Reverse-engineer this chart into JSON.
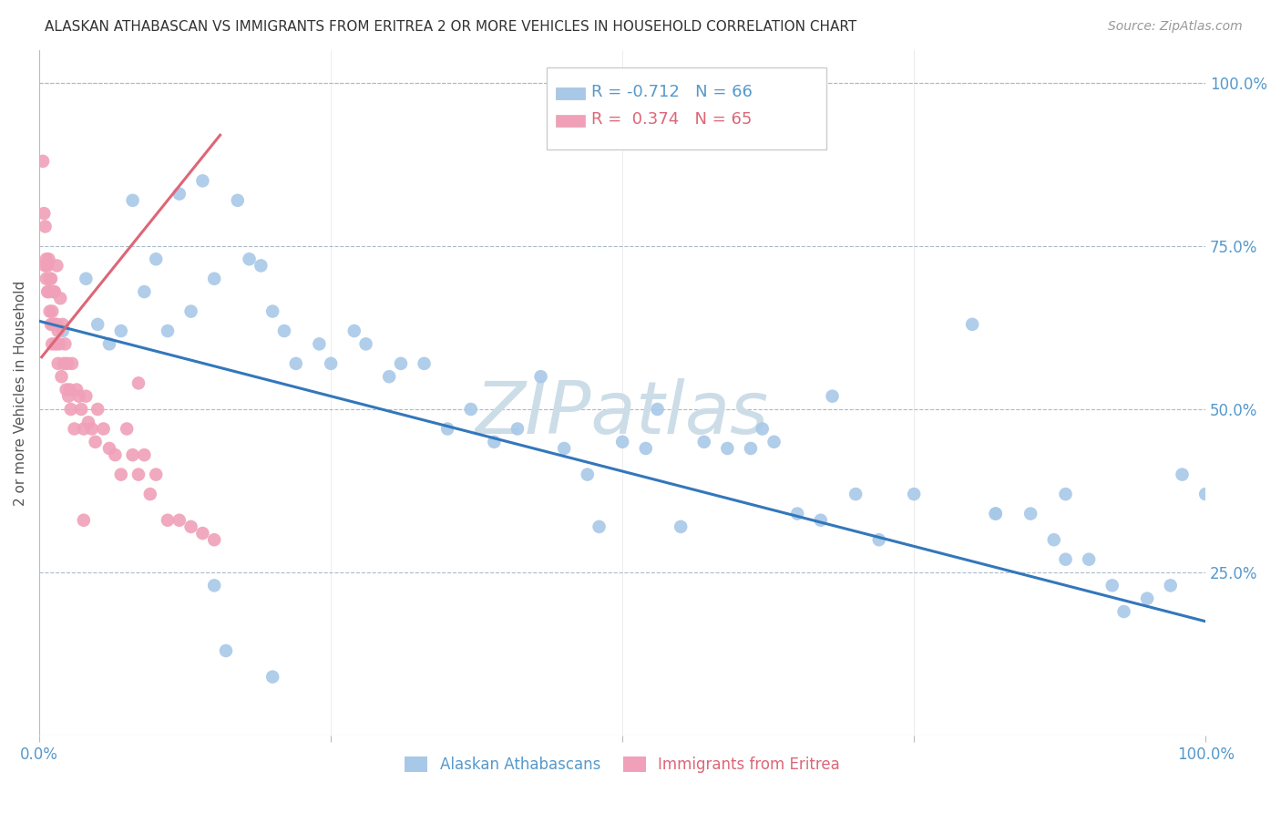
{
  "title": "ALASKAN ATHABASCAN VS IMMIGRANTS FROM ERITREA 2 OR MORE VEHICLES IN HOUSEHOLD CORRELATION CHART",
  "source": "Source: ZipAtlas.com",
  "ylabel": "2 or more Vehicles in Household",
  "ytick_labels": [
    "100.0%",
    "75.0%",
    "50.0%",
    "25.0%"
  ],
  "ytick_values": [
    1.0,
    0.75,
    0.5,
    0.25
  ],
  "legend_blue_r": "-0.712",
  "legend_blue_n": "66",
  "legend_pink_r": "0.374",
  "legend_pink_n": "65",
  "blue_color": "#a8c8e8",
  "pink_color": "#f0a0b8",
  "blue_line_color": "#3377bb",
  "pink_line_color": "#dd6677",
  "watermark": "ZIPatlas",
  "watermark_color": "#ccdde8",
  "blue_scatter_x": [
    0.02,
    0.04,
    0.05,
    0.06,
    0.07,
    0.08,
    0.09,
    0.1,
    0.11,
    0.12,
    0.13,
    0.14,
    0.15,
    0.17,
    0.18,
    0.19,
    0.2,
    0.21,
    0.22,
    0.24,
    0.25,
    0.27,
    0.28,
    0.3,
    0.31,
    0.33,
    0.35,
    0.37,
    0.39,
    0.41,
    0.43,
    0.45,
    0.47,
    0.5,
    0.52,
    0.53,
    0.55,
    0.57,
    0.59,
    0.61,
    0.62,
    0.63,
    0.65,
    0.67,
    0.7,
    0.72,
    0.75,
    0.8,
    0.82,
    0.85,
    0.87,
    0.88,
    0.9,
    0.92,
    0.93,
    0.95,
    0.97,
    0.98,
    1.0,
    0.15,
    0.16,
    0.2,
    0.48,
    0.68,
    0.82,
    0.88
  ],
  "blue_scatter_y": [
    0.62,
    0.7,
    0.63,
    0.6,
    0.62,
    0.82,
    0.68,
    0.73,
    0.62,
    0.83,
    0.65,
    0.85,
    0.7,
    0.82,
    0.73,
    0.72,
    0.65,
    0.62,
    0.57,
    0.6,
    0.57,
    0.62,
    0.6,
    0.55,
    0.57,
    0.57,
    0.47,
    0.5,
    0.45,
    0.47,
    0.55,
    0.44,
    0.4,
    0.45,
    0.44,
    0.5,
    0.32,
    0.45,
    0.44,
    0.44,
    0.47,
    0.45,
    0.34,
    0.33,
    0.37,
    0.3,
    0.37,
    0.63,
    0.34,
    0.34,
    0.3,
    0.27,
    0.27,
    0.23,
    0.19,
    0.21,
    0.23,
    0.4,
    0.37,
    0.23,
    0.13,
    0.09,
    0.32,
    0.52,
    0.34,
    0.37
  ],
  "pink_scatter_x": [
    0.003,
    0.004,
    0.005,
    0.005,
    0.006,
    0.006,
    0.007,
    0.007,
    0.008,
    0.008,
    0.009,
    0.009,
    0.01,
    0.01,
    0.011,
    0.011,
    0.012,
    0.012,
    0.013,
    0.013,
    0.014,
    0.014,
    0.015,
    0.015,
    0.016,
    0.016,
    0.017,
    0.018,
    0.019,
    0.02,
    0.021,
    0.022,
    0.023,
    0.024,
    0.025,
    0.026,
    0.027,
    0.028,
    0.03,
    0.032,
    0.034,
    0.036,
    0.038,
    0.04,
    0.042,
    0.045,
    0.048,
    0.05,
    0.055,
    0.06,
    0.065,
    0.07,
    0.075,
    0.08,
    0.085,
    0.09,
    0.095,
    0.1,
    0.11,
    0.12,
    0.13,
    0.14,
    0.15,
    0.038,
    0.085
  ],
  "pink_scatter_y": [
    0.88,
    0.8,
    0.72,
    0.78,
    0.73,
    0.7,
    0.68,
    0.72,
    0.73,
    0.68,
    0.65,
    0.7,
    0.63,
    0.7,
    0.6,
    0.65,
    0.63,
    0.68,
    0.63,
    0.68,
    0.6,
    0.63,
    0.63,
    0.72,
    0.57,
    0.62,
    0.6,
    0.67,
    0.55,
    0.63,
    0.57,
    0.6,
    0.53,
    0.57,
    0.52,
    0.53,
    0.5,
    0.57,
    0.47,
    0.53,
    0.52,
    0.5,
    0.47,
    0.52,
    0.48,
    0.47,
    0.45,
    0.5,
    0.47,
    0.44,
    0.43,
    0.4,
    0.47,
    0.43,
    0.4,
    0.43,
    0.37,
    0.4,
    0.33,
    0.33,
    0.32,
    0.31,
    0.3,
    0.33,
    0.54
  ],
  "blue_line_x_start": 0.0,
  "blue_line_x_end": 1.0,
  "blue_line_y_start": 0.635,
  "blue_line_y_end": 0.175,
  "pink_line_x_start": 0.002,
  "pink_line_x_end": 0.155,
  "pink_line_y_start": 0.58,
  "pink_line_y_end": 0.92,
  "xlim": [
    0.0,
    1.0
  ],
  "ylim": [
    0.0,
    1.05
  ],
  "figsize": [
    14.06,
    8.92
  ],
  "dpi": 100
}
